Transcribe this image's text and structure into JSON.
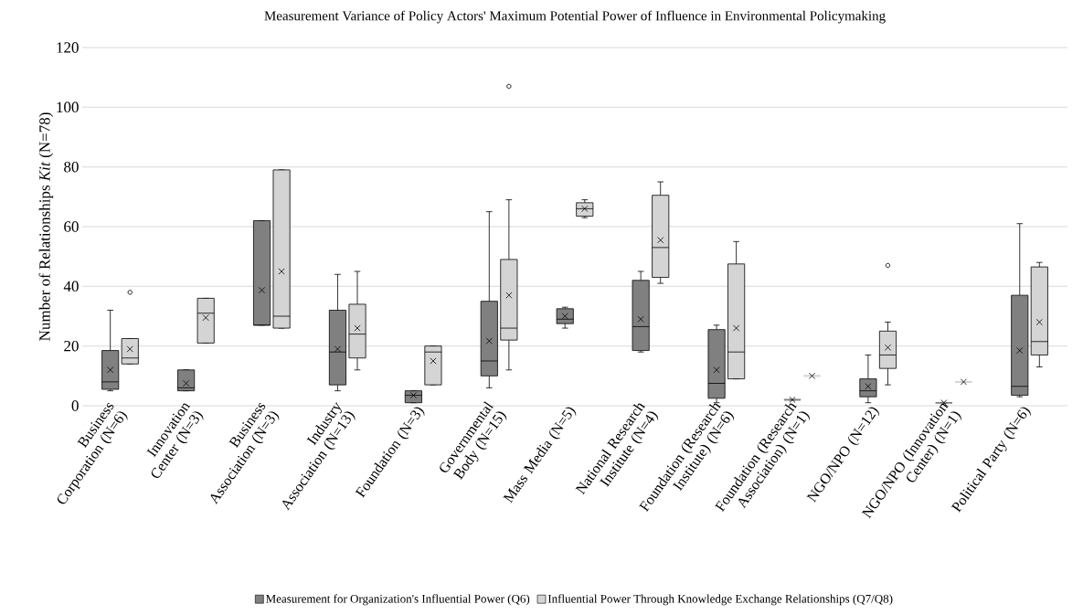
{
  "chart_data": {
    "type": "box",
    "title": "Measurement Variance of Policy Actors' Maximum Potential Power of Influence in Environmental Policymaking",
    "ylabel": "Number of Relationships *Kit*   (N=78)",
    "categories": [
      "Business Corporation (N=6)",
      "Innovation Center (N=3)",
      "Business Association (N=3)",
      "Industry Association (N=13)",
      "Foundation (N=3)",
      "Governmental Body (N=15)",
      "Mass Media (N=5)",
      "National Research Institute (N=4)",
      "Foundation (Research Institute) (N=6)",
      "Foundation (Research Association) (N=1)",
      "NGO/NPO (N=12)",
      "NGO/NPO (Innovation Center) (N=1)",
      "Political Party (N=6)"
    ],
    "series": [
      {
        "name": "Measurement for Organization's Influential Power (Q6)",
        "color": "#808080",
        "boxes": [
          {
            "low": 5,
            "q1": 5.5,
            "median": 8,
            "q3": 18.5,
            "high": 32,
            "mean": 12
          },
          {
            "low": 5,
            "q1": 5,
            "median": 6,
            "q3": 12,
            "high": 12,
            "mean": 7.5
          },
          {
            "low": 27,
            "q1": 27,
            "median": 27,
            "q3": 62,
            "high": 62,
            "mean": 38.7
          },
          {
            "low": 5,
            "q1": 7,
            "median": 18,
            "q3": 32,
            "high": 44,
            "mean": 19
          },
          {
            "low": 1,
            "q1": 1,
            "median": 3.5,
            "q3": 5,
            "high": 5,
            "mean": 3.5
          },
          {
            "low": 6,
            "q1": 10,
            "median": 15,
            "q3": 35,
            "high": 65,
            "mean": 21.7
          },
          {
            "low": 26,
            "q1": 27.5,
            "median": 29,
            "q3": 32.5,
            "high": 33,
            "mean": 30
          },
          {
            "low": 18,
            "q1": 18.5,
            "median": 26.5,
            "q3": 42,
            "high": 45,
            "mean": 29
          },
          {
            "low": 1,
            "q1": 2.5,
            "median": 7.5,
            "q3": 25.5,
            "high": 27,
            "mean": 12
          },
          {
            "low": 2,
            "q1": 2,
            "median": 2,
            "q3": 2,
            "high": 2,
            "mean": 2
          },
          {
            "low": 1,
            "q1": 3,
            "median": 5,
            "q3": 9,
            "high": 17,
            "mean": 6.5
          },
          {
            "low": 1,
            "q1": 1,
            "median": 1,
            "q3": 1,
            "high": 1,
            "mean": 1
          },
          {
            "low": 3,
            "q1": 3.5,
            "median": 6.5,
            "q3": 37,
            "high": 61,
            "mean": 18.5
          }
        ]
      },
      {
        "name": "Influential Power Through Knowledge Exchange Relationships (Q7/Q8)",
        "color": "#d4d4d4",
        "boxes": [
          {
            "low": 14,
            "q1": 14,
            "median": 16,
            "q3": 22.5,
            "high": 22.5,
            "mean": 19,
            "outliers": [
              38
            ]
          },
          {
            "low": 21,
            "q1": 21,
            "median": 31,
            "q3": 36,
            "high": 36,
            "mean": 29.5
          },
          {
            "low": 26,
            "q1": 26,
            "median": 30,
            "q3": 79,
            "high": 79,
            "mean": 45
          },
          {
            "low": 12,
            "q1": 16,
            "median": 24,
            "q3": 34,
            "high": 45,
            "mean": 26
          },
          {
            "low": 7,
            "q1": 7,
            "median": 18,
            "q3": 20,
            "high": 20,
            "mean": 15
          },
          {
            "low": 12,
            "q1": 22,
            "median": 26,
            "q3": 49,
            "high": 69,
            "mean": 37,
            "outliers": [
              107
            ]
          },
          {
            "low": 63,
            "q1": 63.5,
            "median": 66,
            "q3": 68,
            "high": 69,
            "mean": 66
          },
          {
            "low": 41,
            "q1": 43,
            "median": 53,
            "q3": 70.5,
            "high": 75,
            "mean": 55.5
          },
          {
            "low": 9,
            "q1": 9,
            "median": 18,
            "q3": 47.5,
            "high": 55,
            "mean": 26
          },
          {
            "low": 10,
            "q1": 10,
            "median": 10,
            "q3": 10,
            "high": 10,
            "mean": 10
          },
          {
            "low": 7,
            "q1": 12.5,
            "median": 17,
            "q3": 25,
            "high": 28,
            "mean": 19.5,
            "outliers": [
              47
            ]
          },
          {
            "low": 8,
            "q1": 8,
            "median": 8,
            "q3": 8,
            "high": 8,
            "mean": 8
          },
          {
            "low": 13,
            "q1": 17,
            "median": 21.5,
            "q3": 46.5,
            "high": 48,
            "mean": 28
          }
        ]
      }
    ],
    "ylim": [
      0,
      120
    ],
    "yticks": [
      0,
      20,
      40,
      60,
      80,
      100,
      120
    ],
    "grid": "y",
    "legend": "bottom"
  }
}
